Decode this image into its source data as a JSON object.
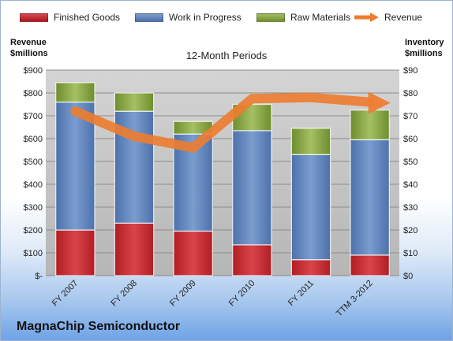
{
  "chart_data": {
    "type": "bar",
    "stacked": true,
    "title": "12-Month Periods",
    "subtitle": "MagnaChip Semiconductor",
    "categories": [
      "FY 2007",
      "FY 2008",
      "FY 2009",
      "FY 2010",
      "FY 2011",
      "TTM 3-2012"
    ],
    "series": [
      {
        "name": "Finished Goods",
        "axis": "right",
        "color": "#c0282e",
        "values": [
          20,
          23,
          19.5,
          13.5,
          7,
          9
        ]
      },
      {
        "name": "Work in Progress",
        "axis": "right",
        "color": "#5b7fb7",
        "values": [
          56,
          49,
          42.5,
          50,
          46,
          50.5
        ]
      },
      {
        "name": "Raw Materials",
        "axis": "right",
        "color": "#7f9e3c",
        "values": [
          8.5,
          8,
          5.5,
          11.5,
          11.5,
          13
        ]
      },
      {
        "name": "Revenue",
        "axis": "left",
        "type": "line",
        "color": "#ed7d31",
        "values": [
          720,
          610,
          560,
          775,
          780,
          760
        ]
      }
    ],
    "ylabel_left": "Revenue\n$millions",
    "ylabel_right": "Inventory\n$millions",
    "ylim_left": [
      0,
      900
    ],
    "ylim_right": [
      0,
      90
    ],
    "yticks_left": [
      "$-",
      "$100",
      "$200",
      "$300",
      "$400",
      "$500",
      "$600",
      "$700",
      "$800",
      "$900"
    ],
    "yticks_right": [
      "$0",
      "$10",
      "$20",
      "$30",
      "$40",
      "$50",
      "$60",
      "$70",
      "$80",
      "$90"
    ],
    "grid": true,
    "legend_position": "top"
  },
  "legend": {
    "finished_goods": "Finished Goods",
    "work_in_progress": "Work in Progress",
    "raw_materials": "Raw Materials",
    "revenue": "Revenue"
  },
  "axis_titles": {
    "left_line1": "Revenue",
    "left_line2": "$millions",
    "right_line1": "Inventory",
    "right_line2": "$millions"
  },
  "title": "12-Month Periods",
  "company": "MagnaChip Semiconductor",
  "colors": {
    "finished_goods": "#c0282e",
    "work_in_progress": "#5b7fb7",
    "raw_materials": "#7f9e3c",
    "revenue": "#ed7d31",
    "plot_background": "#c6c6c6"
  }
}
